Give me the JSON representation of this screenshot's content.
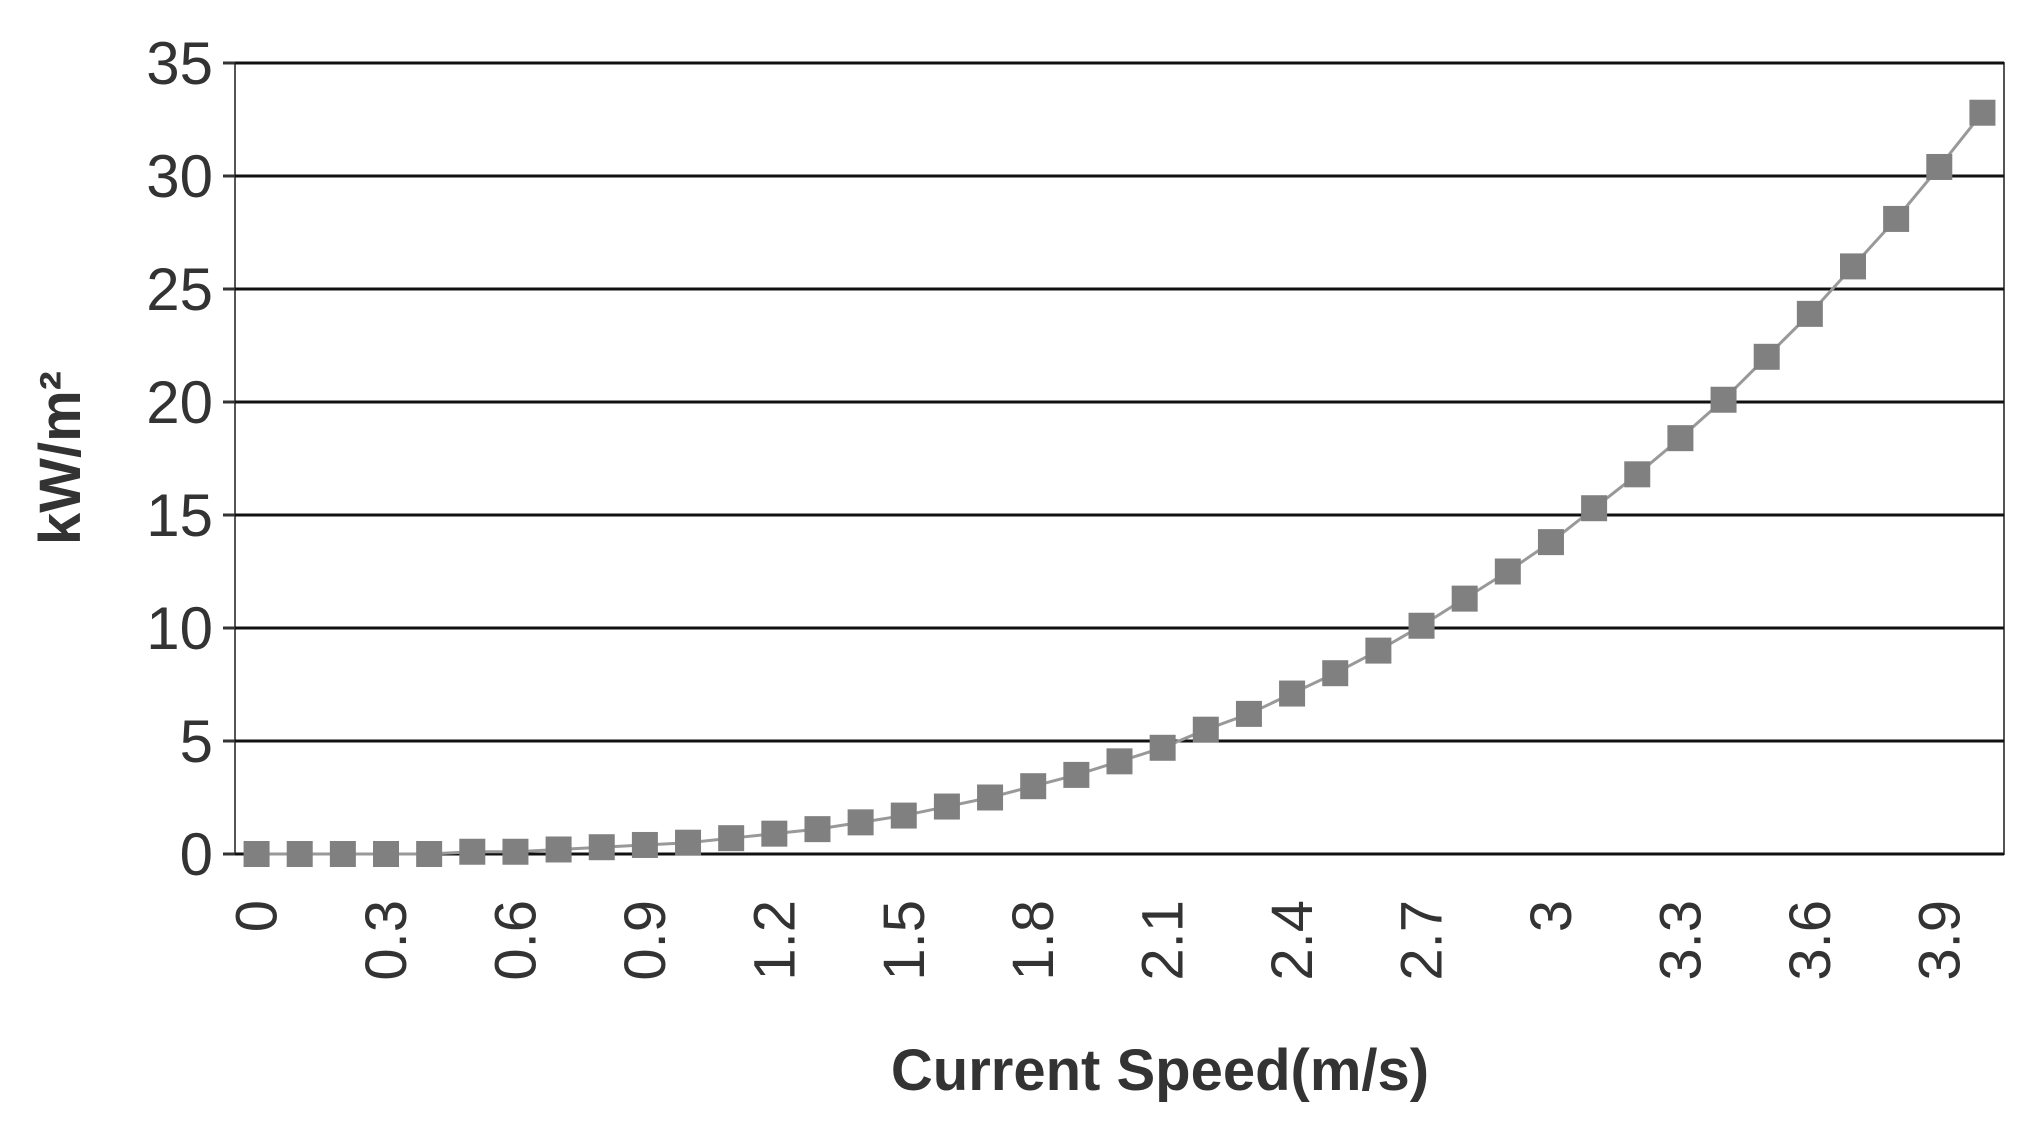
{
  "chart_data": {
    "type": "line",
    "categories": [
      "0",
      null,
      null,
      "0.3",
      null,
      null,
      "0.6",
      null,
      null,
      "0.9",
      null,
      null,
      "1.2",
      null,
      null,
      "1.5",
      null,
      null,
      "1.8",
      null,
      null,
      "2.1",
      null,
      null,
      "2.4",
      null,
      null,
      "2.7",
      null,
      null,
      "3",
      null,
      null,
      "3.3",
      null,
      null,
      "3.6",
      null,
      null,
      "3.9",
      null
    ],
    "values": [
      0,
      0,
      0,
      0,
      0,
      0.1,
      0.1,
      0.2,
      0.3,
      0.4,
      0.5,
      0.7,
      0.9,
      1.1,
      1.4,
      1.7,
      2.1,
      2.5,
      3.0,
      3.5,
      4.1,
      4.7,
      5.5,
      6.2,
      7.1,
      8.0,
      9.0,
      10.1,
      11.3,
      12.5,
      13.8,
      15.3,
      16.8,
      18.4,
      20.1,
      22.0,
      23.9,
      26.0,
      28.1,
      30.4,
      32.8
    ],
    "color": "#808080",
    "xlabel": "Current Speed(m/s)",
    "ylabel": "kW/m²",
    "ylim": [
      0,
      35
    ],
    "yticks": [
      0,
      5,
      10,
      15,
      20,
      25,
      30,
      35
    ],
    "grid": true
  }
}
